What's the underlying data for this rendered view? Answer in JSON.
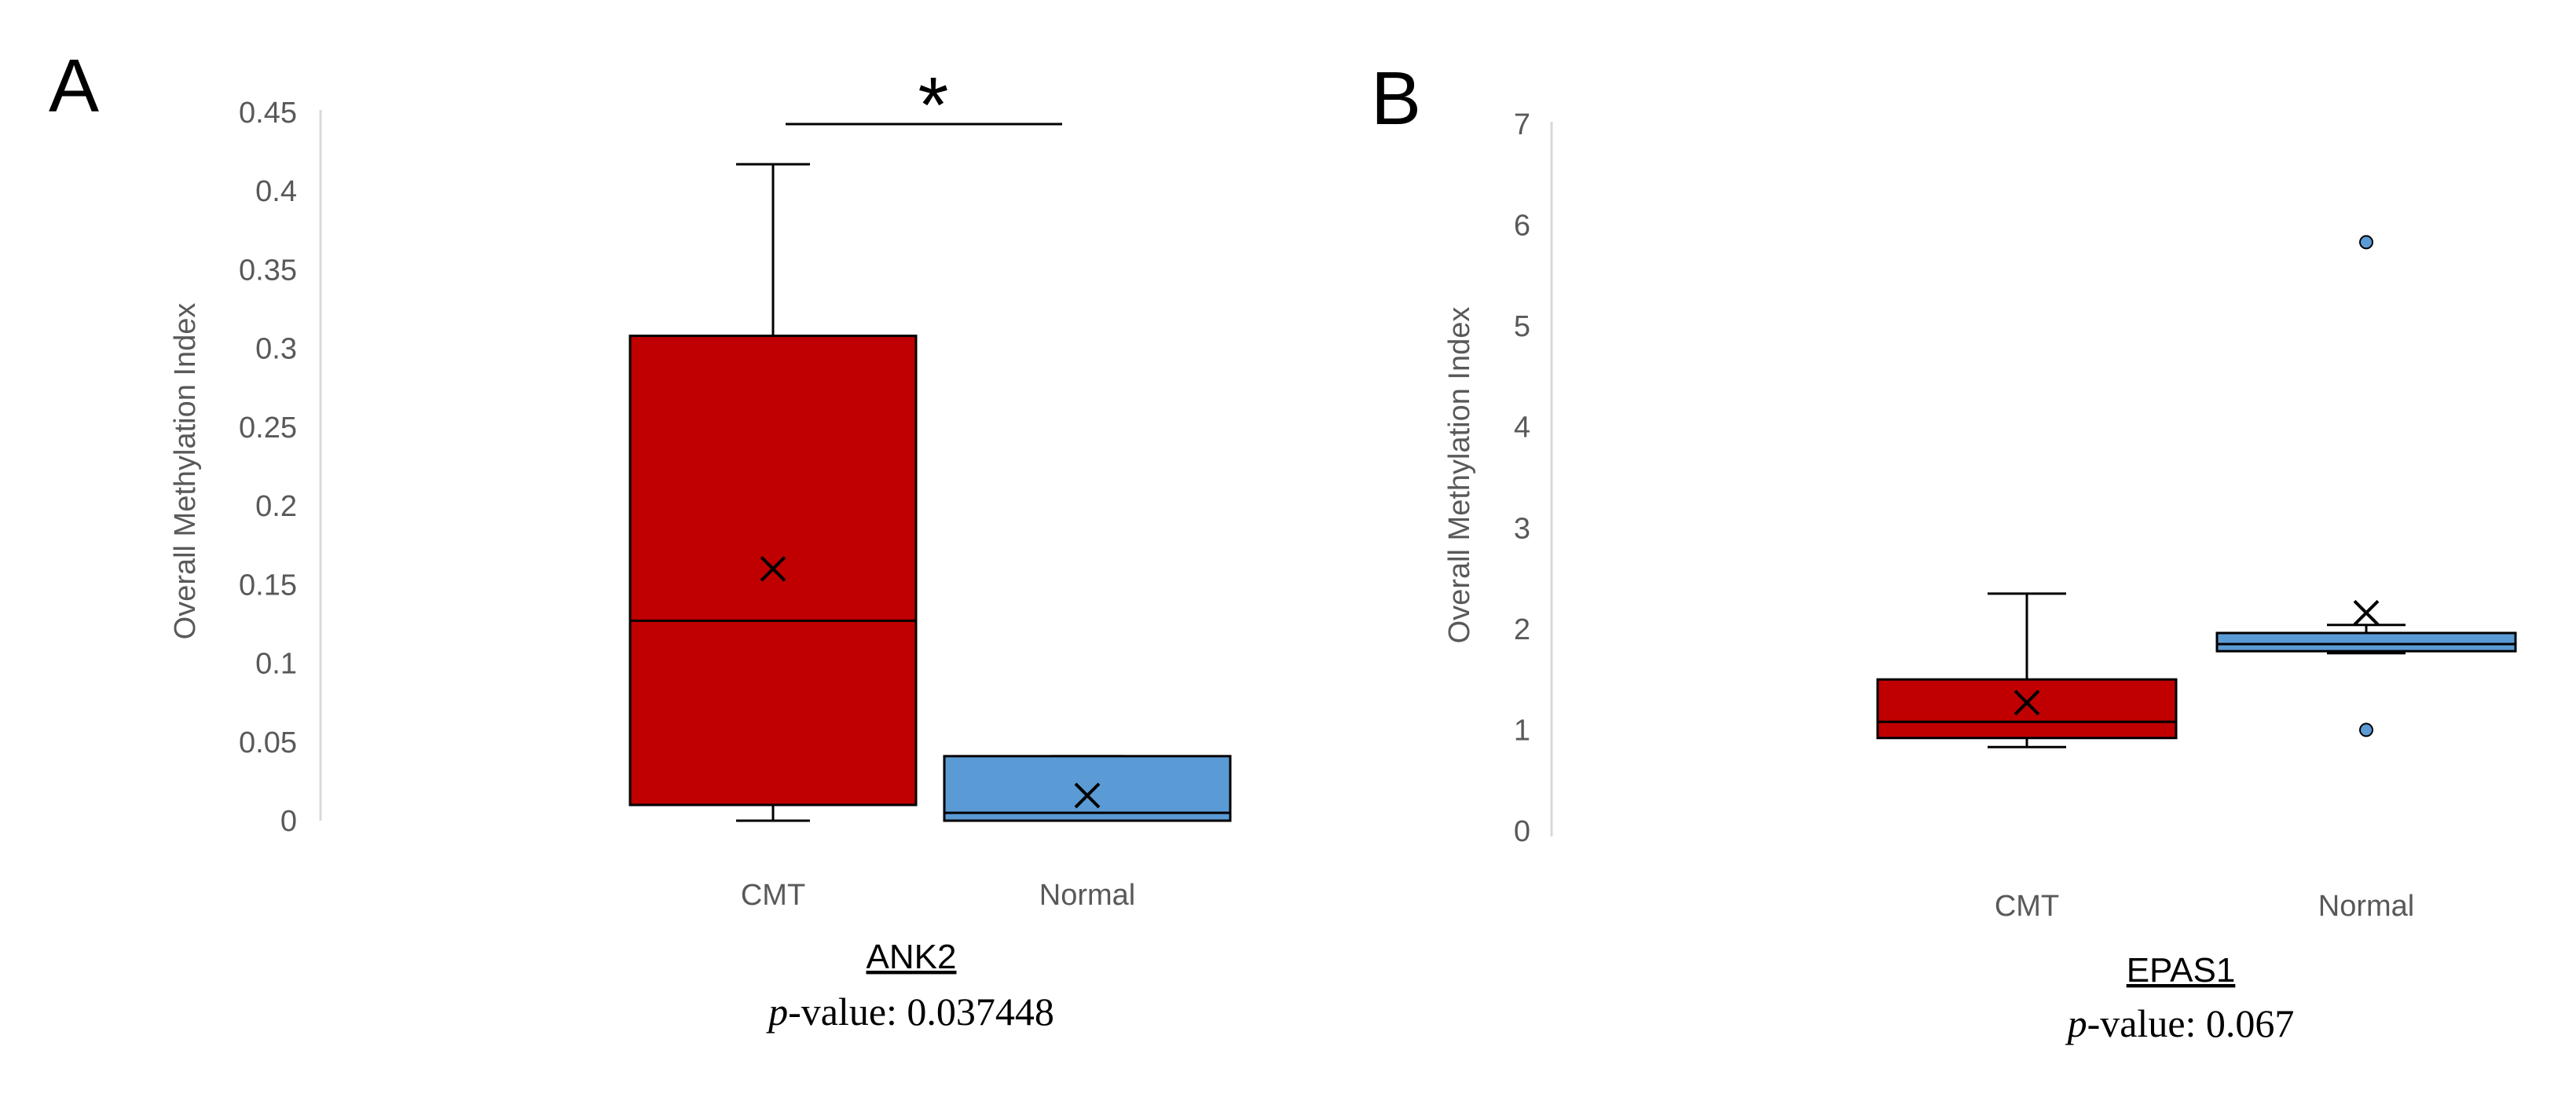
{
  "chart_data": [
    {
      "type": "boxplot",
      "panel_label": "A",
      "gene": "ANK2",
      "ylabel": "Overall Methylation Index",
      "ylim": [
        0,
        0.45
      ],
      "yticks": [
        "0",
        "0.05",
        "0.1",
        "0.15",
        "0.2",
        "0.25",
        "0.3",
        "0.35",
        "0.4",
        "0.45"
      ],
      "categories": [
        "CMT",
        "Normal"
      ],
      "colors": [
        "#C00000",
        "#5B9BD5"
      ],
      "boxes": [
        {
          "name": "CMT",
          "min": 0,
          "q1": 0.01,
          "median": 0.127,
          "q3": 0.308,
          "max": 0.417,
          "mean": 0.16,
          "outliers": []
        },
        {
          "name": "Normal",
          "min": 0,
          "q1": 0,
          "median": 0.005,
          "q3": 0.041,
          "max": 0.041,
          "mean": 0.016,
          "outliers": []
        }
      ],
      "significance": "*",
      "p_label": "-value: 0.037448"
    },
    {
      "type": "boxplot",
      "panel_label": "B",
      "gene": "EPAS1",
      "ylabel": "Overall Methylation Index",
      "ylim": [
        0,
        7
      ],
      "yticks": [
        "0",
        "1",
        "2",
        "3",
        "4",
        "5",
        "6",
        "7"
      ],
      "categories": [
        "CMT",
        "Normal"
      ],
      "colors": [
        "#C00000",
        "#5B9BD5"
      ],
      "boxes": [
        {
          "name": "CMT",
          "min": 0.83,
          "q1": 0.92,
          "median": 1.08,
          "q3": 1.5,
          "max": 2.35,
          "mean": 1.27,
          "outliers": []
        },
        {
          "name": "Normal",
          "min": 1.76,
          "q1": 1.78,
          "median": 1.85,
          "q3": 1.96,
          "max": 2.04,
          "mean": 2.16,
          "outliers": [
            5.83,
            1.0
          ]
        }
      ],
      "significance": "",
      "p_label": "-value: 0.067"
    }
  ],
  "p_italic": "p"
}
